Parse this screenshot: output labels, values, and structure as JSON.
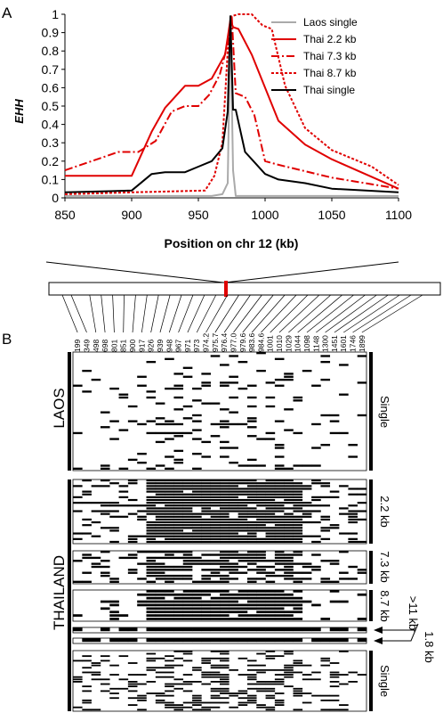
{
  "panel_a_label": "A",
  "panel_b_label": "B",
  "chart_data": {
    "type": "line",
    "title": "",
    "xlabel": "Position on chr 12 (kb)",
    "ylabel": "EHH",
    "xlim": [
      850,
      1100
    ],
    "ylim": [
      0,
      1
    ],
    "x_ticks": [
      "850",
      "900",
      "950",
      "1000",
      "1050",
      "1100"
    ],
    "y_ticks": [
      "0",
      "0.1",
      "0.2",
      "0.3",
      "0.4",
      "0.5",
      "0.6",
      "0.7",
      "0.8",
      "0.9",
      "1"
    ],
    "legend_position": "top-right",
    "series": [
      {
        "name": "Laos single",
        "color": "#aaaaaa",
        "dash": "solid",
        "x": [
          850,
          960,
          968,
          972,
          974,
          976,
          978,
          982,
          1100
        ],
        "y": [
          0.01,
          0.01,
          0.02,
          0.08,
          0.98,
          0.15,
          0.01,
          0.01,
          0.01
        ]
      },
      {
        "name": "Thai 2.2 kb",
        "color": "#e00000",
        "dash": "solid",
        "x": [
          850,
          900,
          915,
          925,
          940,
          950,
          960,
          970,
          974,
          976,
          980,
          990,
          1010,
          1030,
          1050,
          1100
        ],
        "y": [
          0.12,
          0.12,
          0.36,
          0.49,
          0.61,
          0.61,
          0.65,
          0.78,
          0.97,
          0.93,
          0.92,
          0.78,
          0.42,
          0.29,
          0.21,
          0.05
        ]
      },
      {
        "name": "Thai 7.3 kb",
        "color": "#e00000",
        "dash": "dashdot",
        "x": [
          850,
          890,
          905,
          918,
          930,
          940,
          950,
          958,
          966,
          972,
          975,
          978,
          985,
          992,
          1000,
          1010,
          1050,
          1100
        ],
        "y": [
          0.15,
          0.25,
          0.25,
          0.31,
          0.47,
          0.5,
          0.5,
          0.56,
          0.67,
          0.84,
          0.99,
          0.57,
          0.55,
          0.45,
          0.2,
          0.18,
          0.11,
          0.05
        ]
      },
      {
        "name": "Thai 8.7 kb",
        "color": "#e00000",
        "dash": "dotted",
        "x": [
          850,
          900,
          955,
          962,
          968,
          972,
          975,
          980,
          990,
          998,
          1005,
          1015,
          1030,
          1050,
          1080,
          1100
        ],
        "y": [
          0.02,
          0.03,
          0.04,
          0.12,
          0.3,
          0.8,
          0.99,
          1.0,
          1.0,
          0.94,
          0.92,
          0.61,
          0.38,
          0.26,
          0.17,
          0.07
        ]
      },
      {
        "name": "Thai single",
        "color": "#000000",
        "dash": "solid",
        "x": [
          850,
          900,
          915,
          925,
          940,
          950,
          960,
          968,
          972,
          974,
          976,
          978,
          985,
          990,
          1000,
          1010,
          1030,
          1050,
          1100
        ],
        "y": [
          0.03,
          0.04,
          0.13,
          0.14,
          0.14,
          0.17,
          0.2,
          0.27,
          0.47,
          0.99,
          0.48,
          0.48,
          0.25,
          0.21,
          0.13,
          0.1,
          0.08,
          0.05,
          0.03
        ]
      }
    ]
  },
  "marker_positions": [
    "199",
    "349",
    "498",
    "698",
    "801",
    "851",
    "900",
    "917",
    "926",
    "939",
    "948",
    "967",
    "971",
    "973",
    "974.2",
    "975.7",
    "976.4",
    "977.0",
    "979.6",
    "983.6",
    "984.6",
    "1001",
    "1010",
    "1029",
    "1044",
    "1098",
    "1148",
    "1300",
    "1451",
    "1601",
    "1746",
    "1899"
  ],
  "groups": {
    "laos": "LAOS",
    "thailand": "THAILAND"
  },
  "block_labels": {
    "laos_single": "Single",
    "thai_2_2": "2.2 kb",
    "thai_7_3": "7.3 kb",
    "thai_8_7": "8.7 kb",
    "thai_11": ">11 kb",
    "thai_1_8": "1.8 kb",
    "thai_single": "Single"
  },
  "haplotype_blocks": [
    {
      "id": "laos_single",
      "rows": 40,
      "density": 0.12,
      "core": 0.18
    },
    {
      "id": "thai_2_2",
      "rows": 23,
      "density": 0.45,
      "core": 0.93
    },
    {
      "id": "thai_7_3",
      "rows": 11,
      "density": 0.4,
      "core": 0.7
    },
    {
      "id": "thai_8_7",
      "rows": 9,
      "density": 0.35,
      "core": 0.95
    },
    {
      "id": "thai_11",
      "rows": 1,
      "density": 1.0,
      "core": 1.0
    },
    {
      "id": "thai_1_8",
      "rows": 1,
      "density": 1.0,
      "core": 1.0
    },
    {
      "id": "thai_single",
      "rows": 26,
      "density": 0.3,
      "core": 0.35
    }
  ]
}
